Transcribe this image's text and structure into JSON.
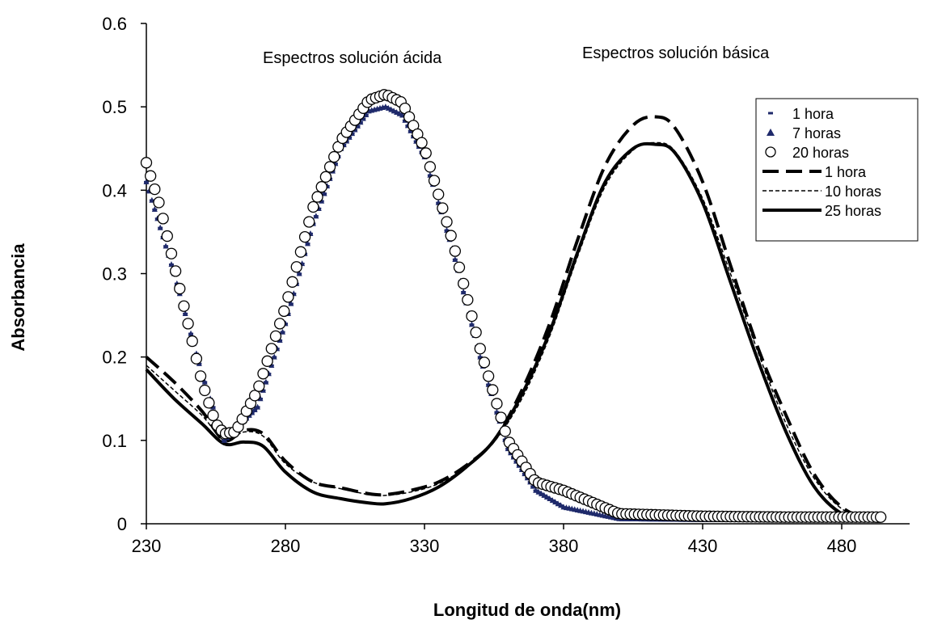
{
  "chart_data": {
    "type": "line",
    "xlabel": "Longitud de onda(nm)",
    "ylabel": "Absorbancia",
    "xlim": [
      230,
      495
    ],
    "ylim": [
      0,
      0.6
    ],
    "xticks": [
      230,
      280,
      330,
      380,
      430,
      480
    ],
    "yticks": [
      0,
      0.1,
      0.2,
      0.3,
      0.4,
      0.5,
      0.6
    ],
    "grid": false,
    "legend_position": "right",
    "annotations": [
      "Espectros solución ácida",
      "Espectros solución básica"
    ],
    "series": [
      {
        "name": "1 hora",
        "style": "dash-marker",
        "color": "#1f2a6b",
        "x": [
          230,
          240,
          250,
          258,
          270,
          280,
          290,
          300,
          310,
          316,
          322,
          330,
          340,
          350,
          360,
          370,
          380,
          400,
          430,
          460,
          494
        ],
        "y": [
          0.41,
          0.3,
          0.18,
          0.1,
          0.14,
          0.24,
          0.36,
          0.45,
          0.495,
          0.5,
          0.49,
          0.44,
          0.33,
          0.2,
          0.09,
          0.04,
          0.02,
          0.005,
          0.004,
          0.004,
          0.004
        ]
      },
      {
        "name": "7 horas",
        "style": "triangle-marker",
        "color": "#1f2a6b",
        "x": [
          230,
          240,
          250,
          258,
          270,
          280,
          290,
          300,
          310,
          316,
          322,
          330,
          340,
          350,
          360,
          370,
          380,
          400,
          430,
          460,
          494
        ],
        "y": [
          0.41,
          0.3,
          0.18,
          0.1,
          0.14,
          0.24,
          0.36,
          0.45,
          0.495,
          0.5,
          0.49,
          0.44,
          0.33,
          0.2,
          0.09,
          0.04,
          0.02,
          0.006,
          0.005,
          0.005,
          0.005
        ]
      },
      {
        "name": "20 horas",
        "style": "circle-marker",
        "color": "#000000",
        "x": [
          230,
          235,
          240,
          245,
          250,
          255,
          258,
          262,
          270,
          280,
          290,
          300,
          310,
          316,
          322,
          330,
          340,
          350,
          360,
          370,
          380,
          400,
          430,
          460,
          494
        ],
        "y": [
          0.433,
          0.38,
          0.31,
          0.24,
          0.17,
          0.12,
          0.108,
          0.11,
          0.16,
          0.26,
          0.38,
          0.46,
          0.508,
          0.515,
          0.505,
          0.45,
          0.34,
          0.21,
          0.1,
          0.05,
          0.04,
          0.012,
          0.009,
          0.008,
          0.008
        ]
      },
      {
        "name": "1 hora",
        "style": "long-dash",
        "color": "#000000",
        "x": [
          230,
          240,
          250,
          258,
          265,
          272,
          280,
          290,
          300,
          310,
          316,
          325,
          335,
          345,
          355,
          365,
          375,
          385,
          395,
          405,
          413,
          420,
          430,
          440,
          450,
          460,
          470,
          480,
          490,
          494
        ],
        "y": [
          0.2,
          0.17,
          0.135,
          0.1,
          0.112,
          0.108,
          0.075,
          0.05,
          0.043,
          0.036,
          0.035,
          0.04,
          0.05,
          0.07,
          0.1,
          0.16,
          0.24,
          0.34,
          0.43,
          0.478,
          0.488,
          0.475,
          0.41,
          0.31,
          0.21,
          0.13,
          0.06,
          0.02,
          0.005,
          0.004
        ]
      },
      {
        "name": "10 horas",
        "style": "short-dash",
        "color": "#000000",
        "x": [
          230,
          240,
          250,
          258,
          265,
          272,
          280,
          290,
          300,
          310,
          316,
          325,
          335,
          345,
          355,
          365,
          375,
          385,
          395,
          405,
          413,
          420,
          430,
          440,
          450,
          460,
          470,
          480,
          490,
          494
        ],
        "y": [
          0.19,
          0.16,
          0.13,
          0.1,
          0.11,
          0.105,
          0.072,
          0.05,
          0.042,
          0.035,
          0.034,
          0.038,
          0.048,
          0.068,
          0.098,
          0.15,
          0.225,
          0.32,
          0.405,
          0.448,
          0.457,
          0.447,
          0.39,
          0.3,
          0.205,
          0.12,
          0.055,
          0.018,
          0.005,
          0.004
        ]
      },
      {
        "name": "25 horas",
        "style": "solid-thick",
        "color": "#000000",
        "x": [
          230,
          240,
          250,
          258,
          265,
          272,
          280,
          290,
          300,
          310,
          316,
          325,
          335,
          345,
          355,
          365,
          375,
          385,
          395,
          405,
          413,
          420,
          430,
          440,
          450,
          460,
          470,
          480,
          490,
          494
        ],
        "y": [
          0.185,
          0.15,
          0.12,
          0.096,
          0.098,
          0.093,
          0.062,
          0.038,
          0.03,
          0.025,
          0.024,
          0.03,
          0.044,
          0.068,
          0.1,
          0.155,
          0.23,
          0.325,
          0.41,
          0.45,
          0.455,
          0.445,
          0.385,
          0.29,
          0.195,
          0.11,
          0.045,
          0.012,
          0.004,
          0.003
        ]
      }
    ]
  }
}
